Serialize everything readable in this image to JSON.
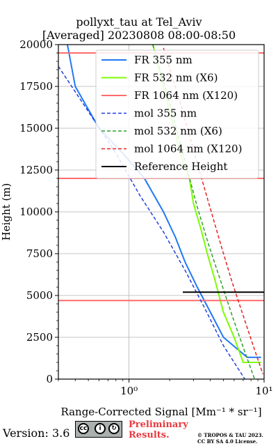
{
  "chart_data": {
    "type": "line",
    "title": "pollyxt_tau at Tel_Aviv",
    "subtitle": "[Averaged] 20230808 08:00-08:50",
    "xlabel": "Range-Corrected Signal [Mm⁻¹ * sr⁻¹]",
    "ylabel": "Height (m)",
    "xscale": "log",
    "xlim": [
      0.3,
      10
    ],
    "ylim": [
      0,
      20000
    ],
    "y_ticks": [
      0,
      2500,
      5000,
      7500,
      10000,
      12500,
      15000,
      17500,
      20000
    ],
    "y_tick_labels": [
      "0",
      "2500",
      "5000",
      "7500",
      "10000",
      "12500",
      "15000",
      "17500",
      "20000"
    ],
    "x_tick_labels": [
      "10⁰",
      "10¹"
    ],
    "x_ticks": [
      1,
      10
    ],
    "grid": true,
    "legend_position": "top-right",
    "series": [
      {
        "name": "FR 355 nm",
        "color": "#1f77f4",
        "style": "solid",
        "x": [
          0.35,
          0.4,
          0.6,
          0.9,
          1.3,
          1.8,
          2.2,
          2.6,
          3.2,
          4.0,
          5.0,
          7.5,
          9.5
        ],
        "y": [
          20000,
          17500,
          15000,
          13500,
          12000,
          10000,
          8500,
          7000,
          5500,
          4000,
          2500,
          1300,
          1300
        ]
      },
      {
        "name": "FR 532 nm (X6)",
        "color": "#7cfc00",
        "style": "solid",
        "x": [
          1.5,
          2.0,
          2.5,
          2.8,
          3.0,
          3.4,
          3.8,
          4.3,
          5.0,
          6.0,
          7.0,
          9.5
        ],
        "y": [
          20000,
          16000,
          13000,
          12000,
          10500,
          9000,
          7500,
          6000,
          4000,
          2500,
          1000,
          1000
        ]
      },
      {
        "name": "FR 1064 nm (X120)",
        "color": "#ff6b6b",
        "style": "solid",
        "x": [
          0.3,
          10,
          0.3,
          10,
          0.3,
          10
        ],
        "y": [
          19500,
          19500,
          12000,
          12000,
          4700,
          4700
        ]
      },
      {
        "name": "mol 355 nm",
        "color": "#1f3fe0",
        "style": "dashed",
        "x": [
          0.3,
          0.5,
          0.8,
          1.2,
          1.8,
          2.6,
          3.6,
          5.0,
          7.2
        ],
        "y": [
          18700,
          16000,
          13500,
          11000,
          8800,
          6500,
          4300,
          2000,
          0
        ]
      },
      {
        "name": "mol 532 nm (X6)",
        "color": "#2ca02c",
        "style": "dashed",
        "x": [
          1.5,
          2.0,
          2.6,
          3.2,
          3.9,
          4.8,
          5.8,
          7.0,
          8.5
        ],
        "y": [
          20000,
          16500,
          13000,
          10300,
          8000,
          5800,
          3800,
          1900,
          0
        ]
      },
      {
        "name": "mol 1064 nm (X120)",
        "color": "#e8201f",
        "style": "dashed",
        "x": [
          1.8,
          2.4,
          3.1,
          3.9,
          4.8,
          5.8,
          7.0,
          8.3,
          9.8
        ],
        "y": [
          19800,
          16500,
          13300,
          10500,
          8000,
          5800,
          3800,
          2000,
          300
        ]
      },
      {
        "name": "Reference Height",
        "color": "#000000",
        "style": "solid",
        "x": [
          2.5,
          10
        ],
        "y": [
          5200,
          5200
        ]
      }
    ]
  },
  "footer": {
    "version": "Version: 3.6",
    "cc_label": "CC BY SA",
    "preliminary_line1": "Preliminary",
    "preliminary_line2": "Results.",
    "copyright_line1": "© TROPOS & TAU 2023.",
    "copyright_line2": "CC BY SA 4.0 License."
  }
}
